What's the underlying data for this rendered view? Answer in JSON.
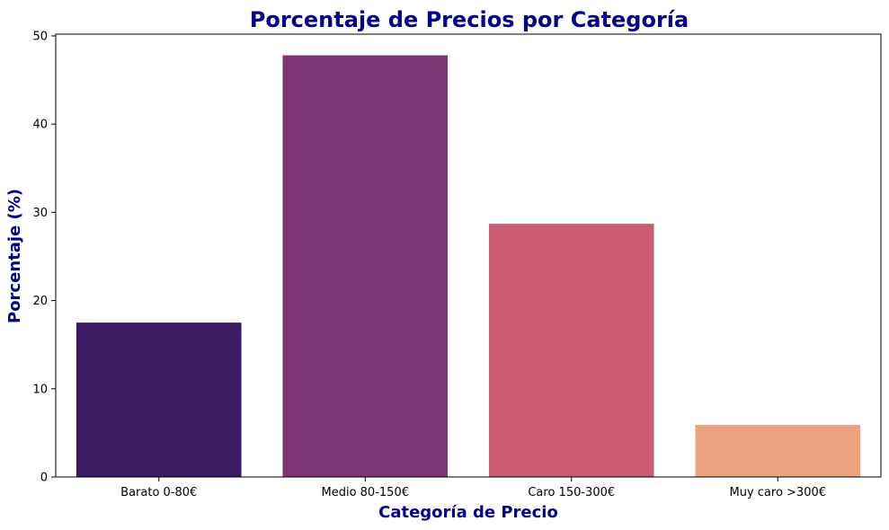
{
  "chart_data": {
    "type": "bar",
    "title": "Porcentaje de Precios por Categoría",
    "xlabel": "Categoría de Precio",
    "ylabel": "Porcentaje (%)",
    "categories": [
      "Barato 0-80€",
      "Medio 80-150€",
      "Caro 150-300€",
      "Muy caro >300€"
    ],
    "values": [
      17.5,
      47.8,
      28.7,
      5.9
    ],
    "colors": [
      "#3b1a64",
      "#7e3573",
      "#cb5c73",
      "#eca47e"
    ],
    "ylim": [
      0,
      50.2
    ],
    "yticks": [
      0,
      10,
      20,
      30,
      40,
      50
    ],
    "grid": false,
    "legend": "none"
  }
}
